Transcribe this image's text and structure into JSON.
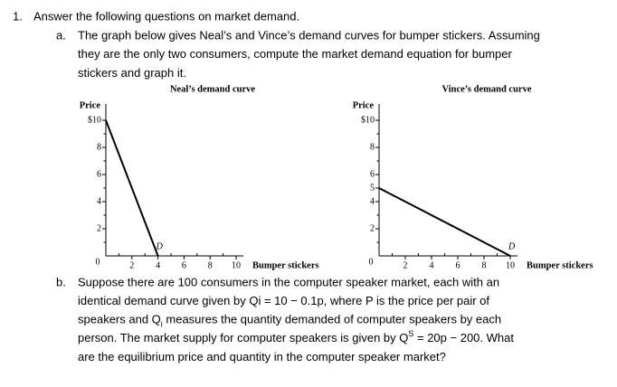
{
  "document": {
    "item_number": "1.",
    "question": "Answer the following questions on market demand.",
    "part_a": {
      "label": "a.",
      "lines": [
        "The graph below gives Neal’s and Vince’s demand curves for bumper stickers. Assuming",
        "they are the only two consumers, compute the market demand equation for bumper",
        "stickers and graph it."
      ]
    },
    "part_b": {
      "label": "b.",
      "lines": [
        "Suppose there are 100 consumers in the computer speaker market, each with an",
        "identical demand curve given by Qi = 10 − 0.1p, where P is the price per pair of",
        {
          "before": "speakers and Q",
          "sub": "i",
          "after": " measures the quantity demanded of computer speakers by each"
        },
        {
          "before": "person. The market supply for computer speakers is given by Q",
          "sup": "S",
          "after": " = 20p − 200. What"
        },
        "are the equilibrium price and quantity in the computer speaker market?"
      ]
    }
  },
  "chart_data": [
    {
      "type": "line",
      "title": "Neal’s demand curve",
      "y_label": "Price",
      "x_label": "Bumper stickers",
      "annotation": "D",
      "x": [
        0,
        4
      ],
      "values": [
        10,
        0
      ],
      "color": "#000000",
      "xlim": [
        0,
        10
      ],
      "ylim": [
        0,
        10
      ],
      "xticks": [
        0,
        2,
        4,
        6,
        8,
        10
      ],
      "xminorticks": [
        1,
        3,
        5,
        7,
        9
      ],
      "yticks": [
        2,
        4,
        6,
        8,
        {
          "value": 10,
          "label": "$10"
        }
      ],
      "yminorticks": [
        1,
        3,
        5,
        7,
        9
      ]
    },
    {
      "type": "line",
      "title": "Vince’s demand curve",
      "y_label": "Price",
      "x_label": "Bumper stickers",
      "annotation": "D",
      "x": [
        0,
        10
      ],
      "values": [
        5,
        0
      ],
      "color": "#000000",
      "xlim": [
        0,
        10
      ],
      "ylim": [
        0,
        10
      ],
      "xticks": [
        0,
        2,
        4,
        6,
        8,
        10
      ],
      "xminorticks": [
        1,
        3,
        5,
        7,
        9
      ],
      "yticks": [
        2,
        4,
        5,
        6,
        8,
        {
          "value": 10,
          "label": "$10"
        }
      ],
      "yminorticks": [
        1,
        3,
        7,
        9
      ]
    }
  ]
}
